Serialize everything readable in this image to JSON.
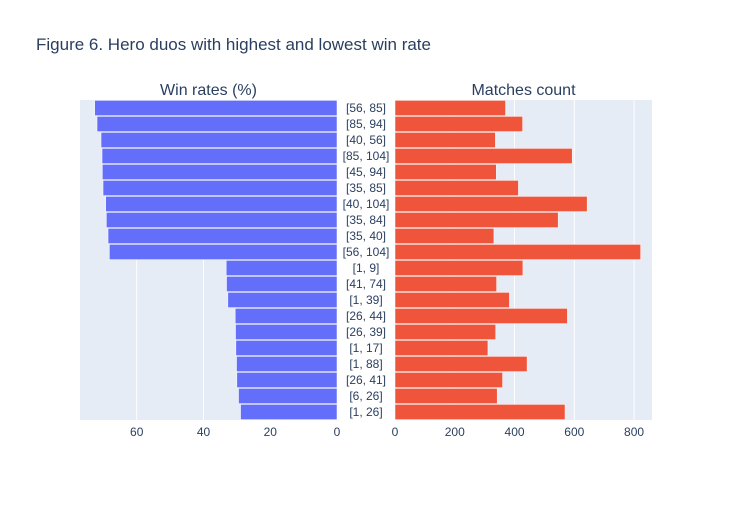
{
  "chart_data": {
    "title": "Figure 6. Hero duos with highest and lowest win rate",
    "type": "bar",
    "orientation": "horizontal",
    "categories": [
      "[56, 85]",
      "[85, 94]",
      "[40, 56]",
      "[85, 104]",
      "[45, 94]",
      "[35, 85]",
      "[40, 104]",
      "[35, 84]",
      "[35, 40]",
      "[56, 104]",
      "[1, 9]",
      "[41, 74]",
      "[1, 39]",
      "[26, 44]",
      "[26, 39]",
      "[1, 17]",
      "[1, 88]",
      "[26, 41]",
      "[6, 26]",
      "[1, 26]"
    ],
    "panels": [
      {
        "subplot_title": "Win rates (%)",
        "bar_color": "#636efa",
        "reversed_x": true,
        "xlim": [
          0,
          77
        ],
        "xticks": [
          0,
          20,
          40,
          60
        ],
        "values": [
          72.6,
          71.9,
          70.7,
          70.4,
          70.3,
          70.1,
          69.3,
          69.1,
          68.6,
          68.2,
          33.2,
          33.1,
          32.7,
          30.5,
          30.4,
          30.3,
          30.1,
          30.0,
          29.5,
          28.9
        ]
      },
      {
        "subplot_title": "Matches count",
        "bar_color": "#ef553b",
        "reversed_x": false,
        "xlim": [
          0,
          860
        ],
        "xticks": [
          0,
          200,
          400,
          600,
          800
        ],
        "values": [
          370,
          427,
          336,
          593,
          339,
          413,
          643,
          546,
          331,
          822,
          428,
          340,
          383,
          577,
          337,
          311,
          442,
          360,
          342,
          569
        ]
      }
    ],
    "grid": true,
    "background_color": "#e5ecf6"
  }
}
